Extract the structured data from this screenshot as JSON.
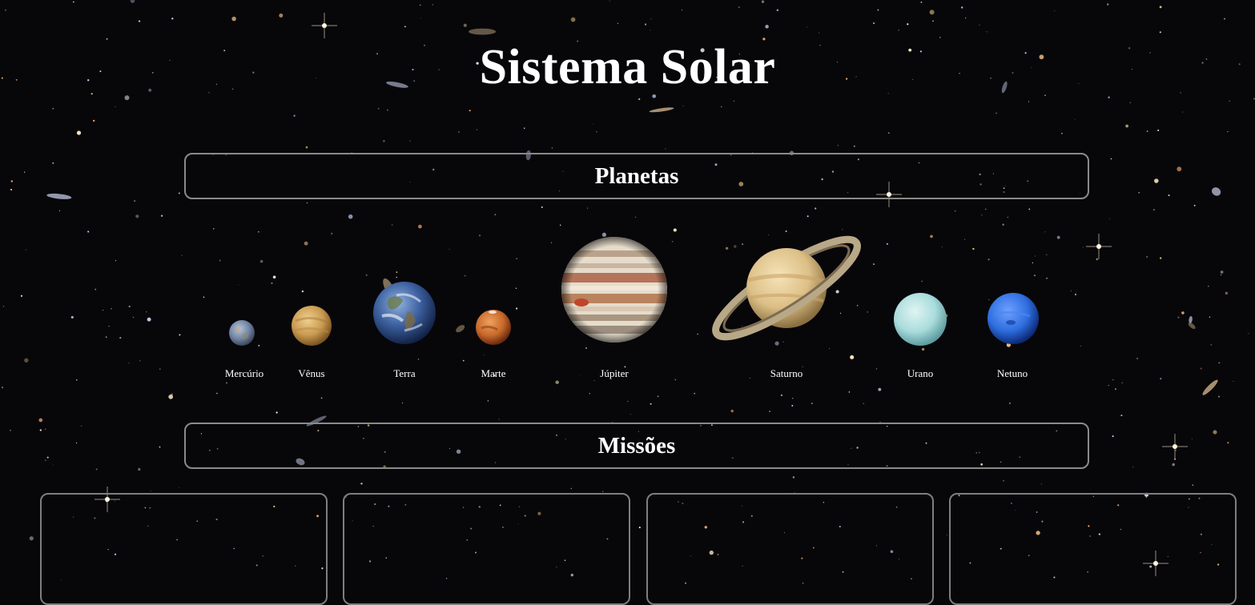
{
  "page": {
    "title": "Sistema Solar"
  },
  "sections": {
    "planets_heading": "Planetas",
    "missions_heading": "Missões"
  },
  "planets": [
    {
      "name": "Mercúrio",
      "icon": "mercury-icon",
      "color": "#7c8fa6"
    },
    {
      "name": "Vênus",
      "icon": "venus-icon",
      "color": "#c99a52"
    },
    {
      "name": "Terra",
      "icon": "earth-icon",
      "color": "#3b5f9e"
    },
    {
      "name": "Marte",
      "icon": "mars-icon",
      "color": "#c8692a"
    },
    {
      "name": "Júpiter",
      "icon": "jupiter-icon",
      "color": "#d8c2a8"
    },
    {
      "name": "Saturno",
      "icon": "saturn-icon",
      "color": "#e2c890"
    },
    {
      "name": "Urano",
      "icon": "uranus-icon",
      "color": "#a9dcdc"
    },
    {
      "name": "Netuno",
      "icon": "neptune-icon",
      "color": "#2f6fe0"
    }
  ],
  "missions": [
    {},
    {},
    {},
    {}
  ],
  "colors": {
    "background": "#07070a",
    "border": "#8a8a8a",
    "text": "#ffffff"
  }
}
